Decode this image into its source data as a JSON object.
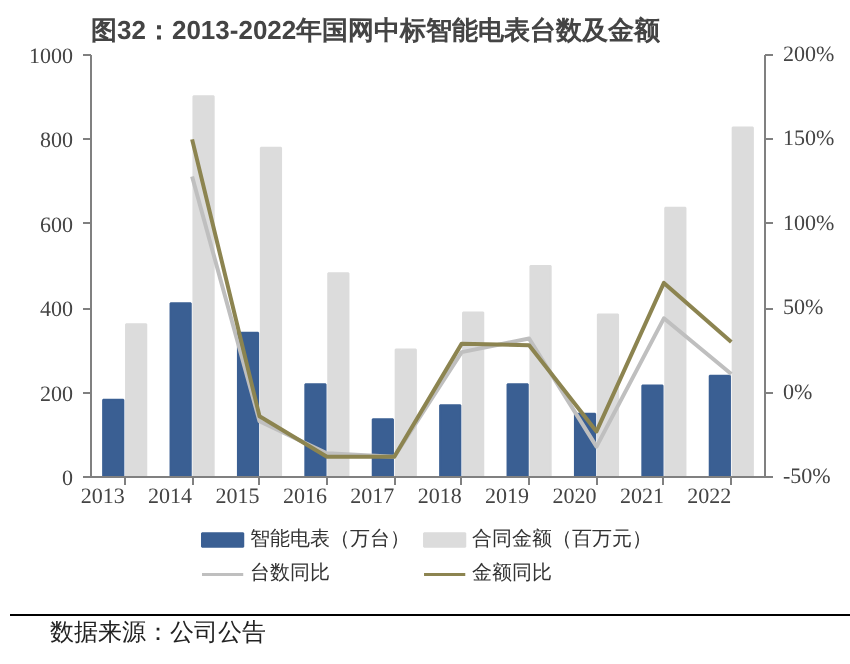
{
  "chart_data": {
    "type": "bar",
    "title": "图32：2013-2022年国网中标智能电表台数及金额",
    "categories": [
      "2013",
      "2014",
      "2015",
      "2016",
      "2017",
      "2018",
      "2019",
      "2020",
      "2021",
      "2022"
    ],
    "series": [
      {
        "name": "智能电表（万台）",
        "color": "#3a5f93",
        "values": [
          183,
          412,
          342,
          220,
          137,
          170,
          220,
          150,
          217,
          240
        ]
      },
      {
        "name": "合同金额（百万元）",
        "color": "#dcdcdc",
        "values": [
          362,
          902,
          780,
          483,
          302,
          390,
          500,
          385,
          638,
          828
        ]
      },
      {
        "name": "台数同比",
        "type": "line",
        "axis": "y2",
        "color": "#bfbfbf",
        "values": [
          null,
          128,
          -17,
          -36,
          -38,
          24,
          32,
          -32,
          44,
          11
        ]
      },
      {
        "name": "金额同比",
        "type": "line",
        "axis": "y2",
        "color": "#8c8450",
        "values": [
          null,
          150,
          -14,
          -38,
          -38,
          29,
          28,
          -23,
          65,
          30
        ]
      }
    ],
    "ylim": [
      0,
      1000
    ],
    "yticks": [
      0,
      200,
      400,
      600,
      800,
      1000
    ],
    "y2lim": [
      -50,
      200
    ],
    "y2ticks": [
      {
        "value": -50,
        "label": "-50%"
      },
      {
        "value": 0,
        "label": "0%"
      },
      {
        "value": 50,
        "label": "50%"
      },
      {
        "value": 100,
        "label": "100%"
      },
      {
        "value": 150,
        "label": "150%"
      },
      {
        "value": 200,
        "label": "200%"
      }
    ],
    "legend": "bottom",
    "grid": false,
    "annotations": [
      "数据来源：公司公告"
    ]
  }
}
